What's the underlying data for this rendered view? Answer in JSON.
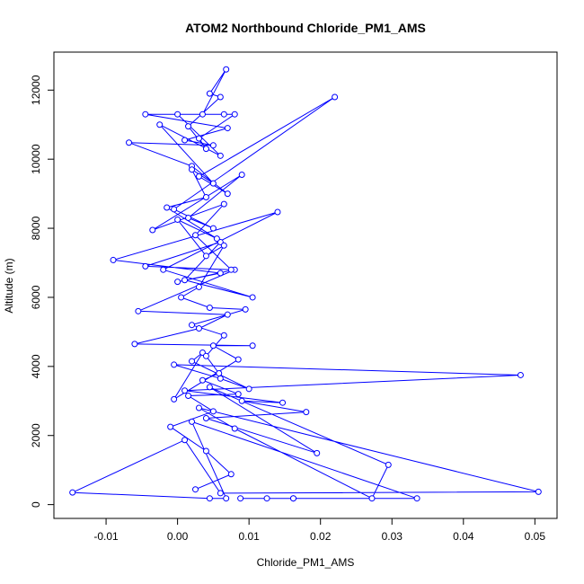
{
  "chart_data": {
    "type": "line",
    "title": "ATOM2 Northbound Chloride_PM1_AMS",
    "x_label": "Chloride_PM1_AMS",
    "y_label": "Altitude (m)",
    "color": "#0000ff",
    "marker": "open-circle",
    "xlim": [
      -0.0173,
      0.0531
    ],
    "ylim": [
      -400,
      13100
    ],
    "xticks": [
      -0.01,
      {
        "value": 0,
        "label": "0.00"
      },
      0.01,
      0.02,
      0.03,
      0.04,
      0.05
    ],
    "yticks": [
      0,
      2000,
      4000,
      6000,
      8000,
      10000,
      12000
    ],
    "x": [
      0.0162,
      0.0125,
      0.0088,
      0.0162,
      0.0335,
      0.002,
      0.0068,
      0.0045,
      -0.0147,
      0.001,
      0.006,
      0.0505,
      0.003,
      0.008,
      0.0272,
      0.0295,
      0.0045,
      0.0195,
      0.004,
      0.018,
      0.009,
      0.0147,
      0.001,
      0.048,
      -0.0005,
      0.006,
      0.01,
      0.002,
      0.0035,
      -0.0005,
      0.0085,
      0.005,
      0.0105,
      -0.006,
      0.003,
      0.007,
      -0.0055,
      0.008,
      0.0,
      0.006,
      -0.009,
      0.014,
      -0.002,
      0.0105,
      0.001,
      0.006,
      -0.0045,
      0.0075,
      0.0025,
      0.0065,
      -0.0035,
      0.009,
      0.0015,
      0.005,
      -0.0005,
      0.022,
      0.003,
      0.007,
      0.002,
      -0.0068,
      0.005,
      0.001,
      0.007,
      -0.0045,
      0.0065,
      0.0035,
      0.0068,
      0.0045,
      0.006,
      0.0015,
      0.004,
      0.003,
      0.008,
      0.0,
      0.006,
      -0.0025,
      0.005,
      0.002,
      0.004,
      -0.0015,
      0.0055,
      0.0,
      0.004,
      0.0065,
      0.003,
      0.0005,
      0.0045,
      0.0095,
      0.002,
      0.0065,
      0.004,
      0.0058,
      0.0035,
      0.0085,
      0.0015,
      0.005,
      -0.001,
      0.004,
      0.0075,
      0.0025
    ],
    "values": [
      180,
      180,
      180,
      180,
      180,
      2400,
      180,
      180,
      350,
      1870,
      330,
      370,
      2800,
      2200,
      180,
      1150,
      3400,
      1490,
      2500,
      2680,
      3000,
      2950,
      3300,
      3750,
      4050,
      3650,
      3350,
      4150,
      4400,
      3050,
      4200,
      4600,
      4600,
      4650,
      5100,
      5500,
      5600,
      6800,
      6450,
      6700,
      7080,
      8470,
      6800,
      6000,
      6500,
      7600,
      6900,
      6800,
      7800,
      8700,
      7950,
      9550,
      8300,
      8000,
      8550,
      11800,
      9500,
      9000,
      9800,
      10480,
      10400,
      10550,
      10900,
      11300,
      11300,
      11300,
      12600,
      11900,
      11800,
      10950,
      10300,
      10600,
      11300,
      11300,
      10100,
      11000,
      9300,
      9700,
      8900,
      8600,
      7700,
      8250,
      7200,
      7500,
      6300,
      6000,
      5700,
      5650,
      5200,
      4900,
      4300,
      3800,
      3600,
      3200,
      3150,
      2700,
      2250,
      1550,
      880,
      440
    ]
  }
}
